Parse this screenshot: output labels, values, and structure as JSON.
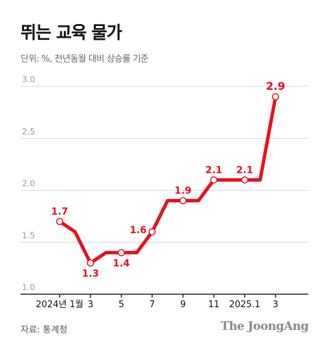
{
  "header": {
    "title": "뛰는 교육 물가",
    "subtitle": "단위: %, 전년동월 대비 상승률 기준"
  },
  "footer": {
    "source": "자료: 통계청",
    "logo": "The JoongAng"
  },
  "colors": {
    "line": "#e8111c",
    "grid": "#d9d9d9",
    "axis": "#222222"
  },
  "chart_data": {
    "type": "line",
    "title": "뛰는 교육 물가",
    "ylabel": "",
    "xlabel": "",
    "ylim": [
      1.0,
      3.0
    ],
    "yticks": [
      "3.0",
      "2.5",
      "2.0",
      "1.5",
      "1.0"
    ],
    "grid": true,
    "x": [
      "2024-01",
      "2024-02",
      "2024-03",
      "2024-04",
      "2024-05",
      "2024-06",
      "2024-07",
      "2024-08",
      "2024-09",
      "2024-10",
      "2024-11",
      "2024-12",
      "2025-01",
      "2025-02",
      "2025-03"
    ],
    "xtick_labels": [
      "2024년 1월",
      "",
      "3",
      "",
      "5",
      "",
      "7",
      "",
      "9",
      "",
      "11",
      "",
      "2025.1",
      "",
      "3"
    ],
    "series": [
      {
        "values": [
          1.7,
          1.6,
          1.3,
          1.4,
          1.4,
          1.4,
          1.6,
          1.9,
          1.9,
          1.9,
          2.1,
          2.1,
          2.1,
          2.1,
          2.9
        ]
      }
    ],
    "labeled_points": [
      {
        "index": 0,
        "label": "1.7",
        "position": "above"
      },
      {
        "index": 2,
        "label": "1.3",
        "position": "below"
      },
      {
        "index": 4,
        "label": "1.4",
        "position": "below"
      },
      {
        "index": 6,
        "label": "1.6",
        "position": "left"
      },
      {
        "index": 8,
        "label": "1.9",
        "position": "above"
      },
      {
        "index": 10,
        "label": "2.1",
        "position": "above"
      },
      {
        "index": 12,
        "label": "2.1",
        "position": "above"
      },
      {
        "index": 14,
        "label": "2.9",
        "position": "above"
      }
    ]
  }
}
